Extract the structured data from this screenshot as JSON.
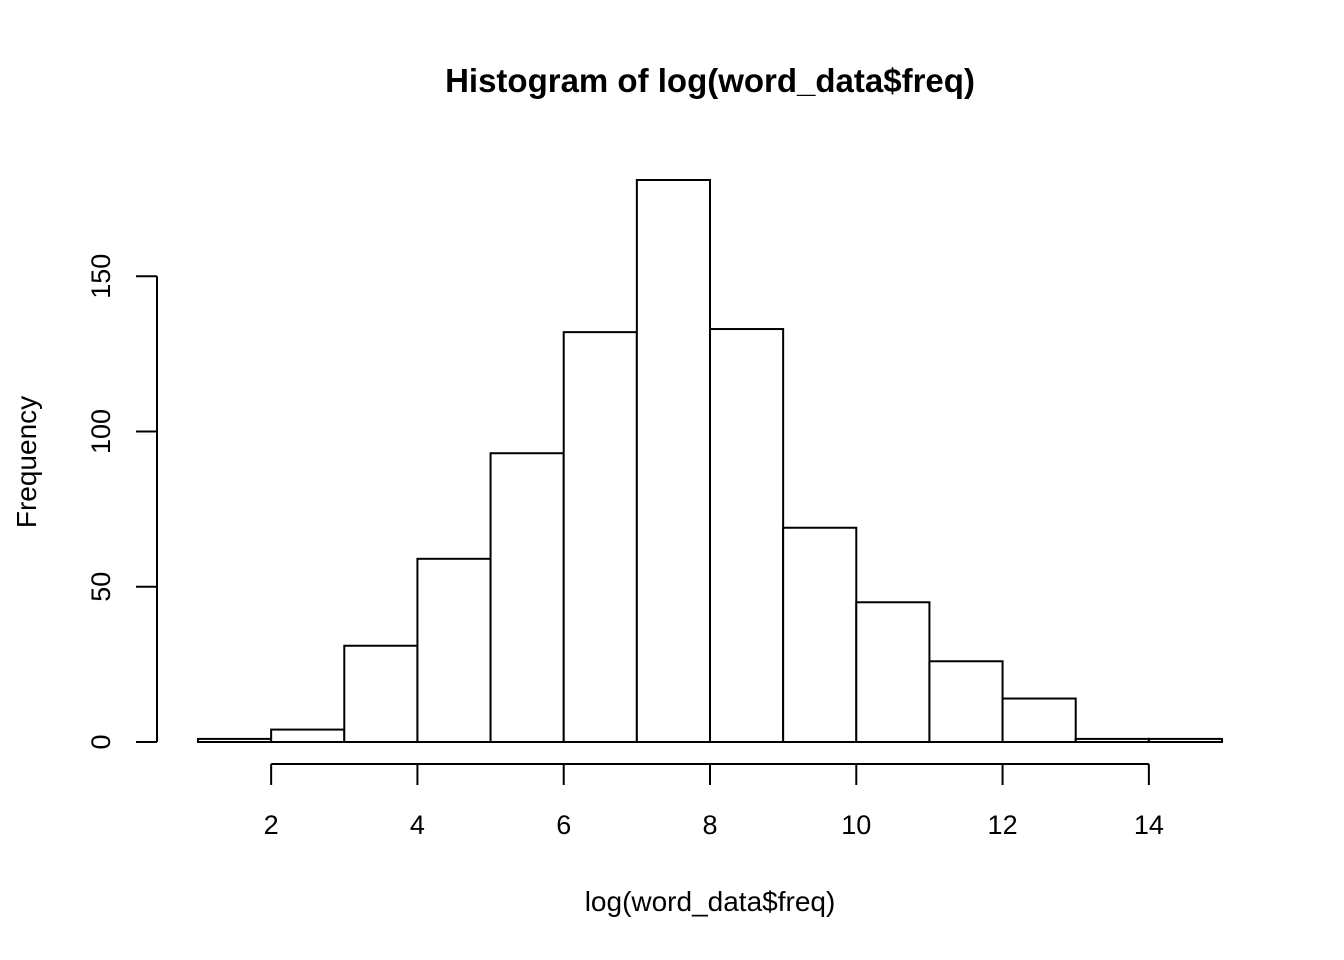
{
  "chart_data": {
    "type": "bar",
    "title": "Histogram of log(word_data$freq)",
    "xlabel": "log(word_data$freq)",
    "ylabel": "Frequency",
    "bins": [
      {
        "start": 1,
        "end": 2,
        "count": 1
      },
      {
        "start": 2,
        "end": 3,
        "count": 4
      },
      {
        "start": 3,
        "end": 4,
        "count": 31
      },
      {
        "start": 4,
        "end": 5,
        "count": 59
      },
      {
        "start": 5,
        "end": 6,
        "count": 93
      },
      {
        "start": 6,
        "end": 7,
        "count": 132
      },
      {
        "start": 7,
        "end": 8,
        "count": 181
      },
      {
        "start": 8,
        "end": 9,
        "count": 133
      },
      {
        "start": 9,
        "end": 10,
        "count": 69
      },
      {
        "start": 10,
        "end": 11,
        "count": 45
      },
      {
        "start": 11,
        "end": 12,
        "count": 26
      },
      {
        "start": 12,
        "end": 13,
        "count": 14
      },
      {
        "start": 13,
        "end": 14,
        "count": 1
      },
      {
        "start": 14,
        "end": 15,
        "count": 1
      }
    ],
    "xlim": [
      1,
      15
    ],
    "ylim": [
      0,
      181
    ],
    "x_ticks": [
      2,
      4,
      6,
      8,
      10,
      12,
      14
    ],
    "y_ticks": [
      0,
      50,
      100,
      150
    ],
    "grid": false,
    "bar_fill": "#ffffff",
    "bar_stroke": "#000000"
  }
}
